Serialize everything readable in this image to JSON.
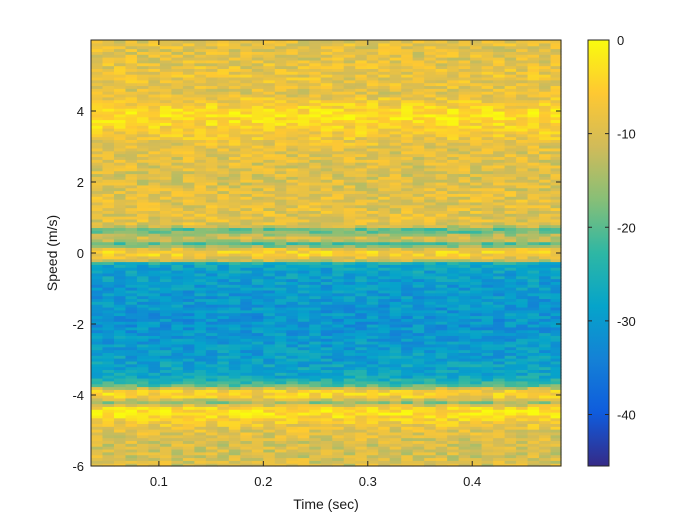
{
  "chart_data": {
    "type": "heatmap",
    "title": "",
    "xlabel": "Time (sec)",
    "ylabel": "Speed (m/s)",
    "xlim": [
      0.035,
      0.485
    ],
    "ylim": [
      -6,
      6
    ],
    "xticks": [
      0.1,
      0.2,
      0.3,
      0.4
    ],
    "xtick_labels": [
      "0.1",
      "0.2",
      "0.3",
      "0.4"
    ],
    "yticks": [
      -6,
      -4,
      -2,
      0,
      2,
      4
    ],
    "ytick_labels": [
      "-6",
      "-4",
      "-2",
      "0",
      "2",
      "4"
    ],
    "colormap": "parula",
    "colorbar": {
      "range": [
        -45.5,
        0
      ],
      "ticks": [
        0,
        -10,
        -20,
        -30,
        -40
      ],
      "tick_labels": [
        "0",
        "-10",
        "-20",
        "-30",
        "-40"
      ]
    },
    "grid": {
      "time_start": 0.035,
      "time_step": 0.011,
      "time_bins": 41,
      "speed_start": -6,
      "speed_step": 0.08,
      "speed_bins": 150
    },
    "speed_profile_db": [
      {
        "speed": -6.0,
        "db": -10
      },
      {
        "speed": -5.5,
        "db": -11
      },
      {
        "speed": -5.0,
        "db": -9
      },
      {
        "speed": -4.7,
        "db": -6
      },
      {
        "speed": -4.5,
        "db": -2
      },
      {
        "speed": -4.35,
        "db": -5
      },
      {
        "speed": -4.2,
        "db": -16
      },
      {
        "speed": -4.0,
        "db": -4
      },
      {
        "speed": -3.85,
        "db": -7
      },
      {
        "speed": -3.7,
        "db": -22
      },
      {
        "speed": -3.5,
        "db": -27
      },
      {
        "speed": -3.0,
        "db": -29
      },
      {
        "speed": -2.0,
        "db": -31
      },
      {
        "speed": -1.0,
        "db": -30
      },
      {
        "speed": -0.3,
        "db": -28
      },
      {
        "speed": -0.2,
        "db": -12
      },
      {
        "speed": 0.0,
        "db": -4
      },
      {
        "speed": 0.15,
        "db": -10
      },
      {
        "speed": 0.25,
        "db": -22
      },
      {
        "speed": 0.4,
        "db": -10
      },
      {
        "speed": 0.55,
        "db": -15
      },
      {
        "speed": 0.65,
        "db": -22
      },
      {
        "speed": 0.8,
        "db": -9
      },
      {
        "speed": 1.5,
        "db": -9
      },
      {
        "speed": 2.0,
        "db": -10
      },
      {
        "speed": 3.0,
        "db": -9
      },
      {
        "speed": 3.7,
        "db": -4
      },
      {
        "speed": 3.9,
        "db": -2
      },
      {
        "speed": 4.1,
        "db": -5
      },
      {
        "speed": 4.5,
        "db": -9
      },
      {
        "speed": 5.0,
        "db": -8
      },
      {
        "speed": 5.5,
        "db": -9
      },
      {
        "speed": 6.0,
        "db": -9
      }
    ],
    "noise_db": 4,
    "colors": {
      "parula": [
        "#352a87",
        "#0f5cdd",
        "#1481d6",
        "#06a4ca",
        "#2eb7a4",
        "#87bf77",
        "#d1bb59",
        "#fec832",
        "#f9fb0e"
      ],
      "axis": "#262626"
    }
  }
}
